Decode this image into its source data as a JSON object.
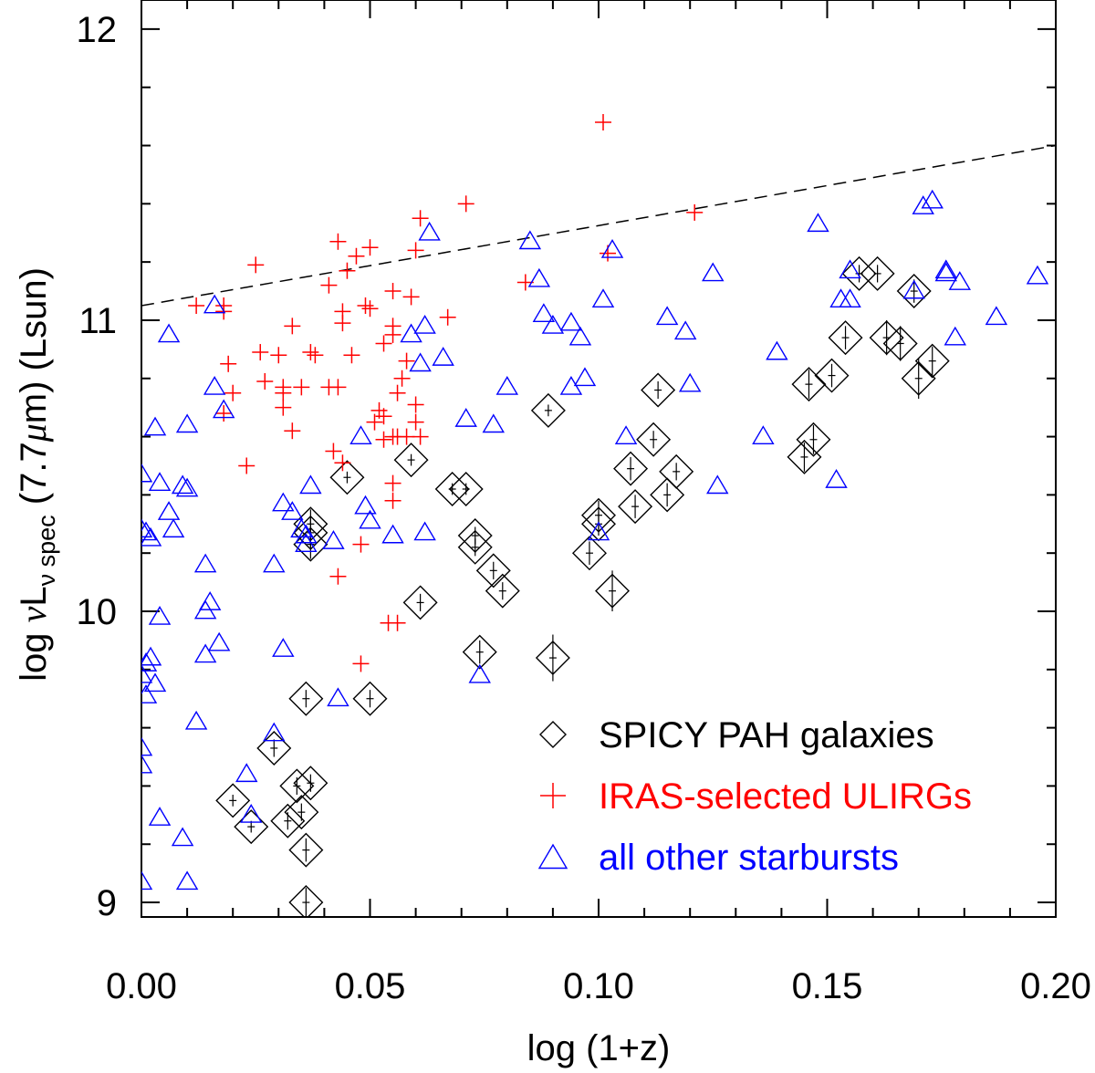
{
  "chart_data": {
    "type": "scatter",
    "xlabel": "log (1+z)",
    "ylabel": {
      "prefix": "log ",
      "nu": "ν",
      "L": "L",
      "sub": "ν spec",
      "middle": " (7.7",
      "mu": "μ",
      "suffix": "m) (Lsun)"
    },
    "xlim": [
      0.0,
      0.2
    ],
    "ylim": [
      8.95,
      12.1
    ],
    "xticks": [
      {
        "value": 0.0,
        "label": "0.00"
      },
      {
        "value": 0.05,
        "label": "0.05"
      },
      {
        "value": 0.1,
        "label": "0.10"
      },
      {
        "value": 0.15,
        "label": "0.15"
      },
      {
        "value": 0.2,
        "label": "0.20"
      }
    ],
    "yticks": [
      {
        "value": 9,
        "label": "9"
      },
      {
        "value": 10,
        "label": "10"
      },
      {
        "value": 11,
        "label": "11"
      },
      {
        "value": 12,
        "label": "12"
      }
    ],
    "reference_line": {
      "style": "dashed",
      "points": [
        [
          0.0,
          11.05
        ],
        [
          0.2,
          11.6
        ]
      ]
    },
    "legend": {
      "position": "bottom-right",
      "entries": [
        {
          "marker": "diamond",
          "label": "SPICY PAH galaxies",
          "color": "#000000"
        },
        {
          "marker": "plus",
          "label": "IRAS-selected ULIRGs",
          "color": "#ff0000"
        },
        {
          "marker": "triangle",
          "label": "all other starbursts",
          "color": "#0000ff"
        }
      ]
    },
    "series": [
      {
        "name": "SPICY PAH galaxies",
        "marker": "diamond",
        "color": "#000000",
        "points": [
          [
            0.036,
            9.0,
            0.05
          ],
          [
            0.036,
            9.18,
            0.04
          ],
          [
            0.032,
            9.28,
            0.03
          ],
          [
            0.035,
            9.31,
            0.03
          ],
          [
            0.024,
            9.26,
            0.02
          ],
          [
            0.02,
            9.35,
            0.02
          ],
          [
            0.034,
            9.4,
            0.03
          ],
          [
            0.037,
            9.41,
            0.03
          ],
          [
            0.029,
            9.53,
            0.03
          ],
          [
            0.036,
            9.7,
            0.03
          ],
          [
            0.05,
            9.7,
            0.03
          ],
          [
            0.061,
            10.03,
            0.03
          ],
          [
            0.037,
            10.3,
            0.05
          ],
          [
            0.037,
            10.27,
            0.05
          ],
          [
            0.037,
            10.23,
            0.05
          ],
          [
            0.045,
            10.46,
            0.02
          ],
          [
            0.059,
            10.52,
            0.02
          ],
          [
            0.068,
            10.42,
            0.02
          ],
          [
            0.071,
            10.42,
            0.02
          ],
          [
            0.073,
            10.26,
            0.03
          ],
          [
            0.073,
            10.22,
            0.03
          ],
          [
            0.077,
            10.14,
            0.03
          ],
          [
            0.079,
            10.07,
            0.03
          ],
          [
            0.074,
            9.86,
            0.04
          ],
          [
            0.09,
            9.84,
            0.08
          ],
          [
            0.089,
            10.69,
            0.02
          ],
          [
            0.098,
            10.2,
            0.04
          ],
          [
            0.1,
            10.3,
            0.04
          ],
          [
            0.1,
            10.33,
            0.05
          ],
          [
            0.103,
            10.07,
            0.07
          ],
          [
            0.107,
            10.49,
            0.04
          ],
          [
            0.108,
            10.36,
            0.04
          ],
          [
            0.112,
            10.59,
            0.03
          ],
          [
            0.113,
            10.76,
            0.03
          ],
          [
            0.115,
            10.4,
            0.04
          ],
          [
            0.117,
            10.48,
            0.03
          ],
          [
            0.145,
            10.53,
            0.05
          ],
          [
            0.147,
            10.59,
            0.05
          ],
          [
            0.146,
            10.78,
            0.05
          ],
          [
            0.151,
            10.81,
            0.04
          ],
          [
            0.154,
            10.94,
            0.04
          ],
          [
            0.157,
            11.16,
            0.03
          ],
          [
            0.161,
            11.16,
            0.03
          ],
          [
            0.163,
            10.94,
            0.06
          ],
          [
            0.166,
            10.92,
            0.06
          ],
          [
            0.169,
            11.1,
            0.04
          ],
          [
            0.17,
            10.8,
            0.07
          ],
          [
            0.173,
            10.86,
            0.05
          ]
        ]
      },
      {
        "name": "IRAS-selected ULIRGs",
        "marker": "plus",
        "color": "#ff0000",
        "points": [
          [
            0.101,
            11.68
          ],
          [
            0.102,
            11.23
          ],
          [
            0.071,
            11.4
          ],
          [
            0.061,
            11.35
          ],
          [
            0.121,
            11.37
          ],
          [
            0.025,
            11.19
          ],
          [
            0.018,
            11.05
          ],
          [
            0.012,
            11.05
          ],
          [
            0.018,
            11.03
          ],
          [
            0.026,
            10.89
          ],
          [
            0.03,
            10.88
          ],
          [
            0.038,
            10.88
          ],
          [
            0.037,
            10.89
          ],
          [
            0.033,
            10.98
          ],
          [
            0.043,
            11.27
          ],
          [
            0.047,
            11.22
          ],
          [
            0.05,
            11.25
          ],
          [
            0.045,
            11.17
          ],
          [
            0.044,
            11.03
          ],
          [
            0.044,
            10.99
          ],
          [
            0.049,
            11.05
          ],
          [
            0.05,
            11.04
          ],
          [
            0.041,
            11.12
          ],
          [
            0.06,
            11.24
          ],
          [
            0.055,
            11.1
          ],
          [
            0.059,
            11.08
          ],
          [
            0.067,
            11.01
          ],
          [
            0.084,
            11.13
          ],
          [
            0.019,
            10.85
          ],
          [
            0.02,
            10.75
          ],
          [
            0.018,
            10.68
          ],
          [
            0.027,
            10.79
          ],
          [
            0.031,
            10.77
          ],
          [
            0.031,
            10.75
          ],
          [
            0.031,
            10.7
          ],
          [
            0.035,
            10.77
          ],
          [
            0.041,
            10.77
          ],
          [
            0.043,
            10.77
          ],
          [
            0.042,
            10.55
          ],
          [
            0.044,
            10.51
          ],
          [
            0.046,
            10.88
          ],
          [
            0.033,
            10.62
          ],
          [
            0.023,
            10.5
          ],
          [
            0.048,
            10.23
          ],
          [
            0.043,
            10.12
          ],
          [
            0.053,
            10.59
          ],
          [
            0.051,
            10.65
          ],
          [
            0.055,
            10.6
          ],
          [
            0.056,
            10.6
          ],
          [
            0.058,
            10.6
          ],
          [
            0.052,
            10.69
          ],
          [
            0.053,
            10.67
          ],
          [
            0.056,
            10.75
          ],
          [
            0.055,
            10.44
          ],
          [
            0.055,
            10.38
          ],
          [
            0.06,
            10.65
          ],
          [
            0.06,
            10.71
          ],
          [
            0.053,
            10.92
          ],
          [
            0.055,
            10.95
          ],
          [
            0.058,
            10.86
          ],
          [
            0.055,
            10.98
          ],
          [
            0.048,
            9.82
          ],
          [
            0.054,
            9.96
          ],
          [
            0.056,
            9.96
          ],
          [
            0.061,
            10.6
          ],
          [
            0.057,
            10.8
          ]
        ]
      },
      {
        "name": "all other starbursts",
        "marker": "triangle",
        "color": "#0000ff",
        "points": [
          [
            0.0,
            9.07
          ],
          [
            0.0,
            9.53
          ],
          [
            0.0,
            9.47
          ],
          [
            0.001,
            9.71
          ],
          [
            0.0,
            9.78
          ],
          [
            0.001,
            9.82
          ],
          [
            0.002,
            9.84
          ],
          [
            0.003,
            9.75
          ],
          [
            0.004,
            9.98
          ],
          [
            0.0,
            10.28
          ],
          [
            0.0,
            10.47
          ],
          [
            0.001,
            10.27
          ],
          [
            0.002,
            10.25
          ],
          [
            0.003,
            10.63
          ],
          [
            0.004,
            10.44
          ],
          [
            0.006,
            10.95
          ],
          [
            0.006,
            10.34
          ],
          [
            0.007,
            10.28
          ],
          [
            0.009,
            10.43
          ],
          [
            0.01,
            10.42
          ],
          [
            0.01,
            10.64
          ],
          [
            0.009,
            9.22
          ],
          [
            0.01,
            9.07
          ],
          [
            0.004,
            9.29
          ],
          [
            0.012,
            9.62
          ],
          [
            0.014,
            9.85
          ],
          [
            0.014,
            10.16
          ],
          [
            0.015,
            10.03
          ],
          [
            0.014,
            10.0
          ],
          [
            0.016,
            10.77
          ],
          [
            0.016,
            11.05
          ],
          [
            0.018,
            10.69
          ],
          [
            0.017,
            9.89
          ],
          [
            0.023,
            9.44
          ],
          [
            0.024,
            9.3
          ],
          [
            0.029,
            10.16
          ],
          [
            0.029,
            9.58
          ],
          [
            0.031,
            9.87
          ],
          [
            0.031,
            10.37
          ],
          [
            0.033,
            10.34
          ],
          [
            0.035,
            10.28
          ],
          [
            0.036,
            10.26
          ],
          [
            0.036,
            10.23
          ],
          [
            0.037,
            10.43
          ],
          [
            0.042,
            10.24
          ],
          [
            0.043,
            9.7
          ],
          [
            0.048,
            10.6
          ],
          [
            0.049,
            10.36
          ],
          [
            0.05,
            10.31
          ],
          [
            0.055,
            10.26
          ],
          [
            0.059,
            10.95
          ],
          [
            0.061,
            10.85
          ],
          [
            0.062,
            10.98
          ],
          [
            0.062,
            10.27
          ],
          [
            0.063,
            11.3
          ],
          [
            0.066,
            10.87
          ],
          [
            0.071,
            10.66
          ],
          [
            0.074,
            9.78
          ],
          [
            0.077,
            10.64
          ],
          [
            0.08,
            10.77
          ],
          [
            0.085,
            11.27
          ],
          [
            0.087,
            11.14
          ],
          [
            0.088,
            11.02
          ],
          [
            0.09,
            10.98
          ],
          [
            0.094,
            10.99
          ],
          [
            0.096,
            10.94
          ],
          [
            0.094,
            10.77
          ],
          [
            0.097,
            10.8
          ],
          [
            0.1,
            10.27
          ],
          [
            0.101,
            11.07
          ],
          [
            0.103,
            11.24
          ],
          [
            0.106,
            10.6
          ],
          [
            0.115,
            11.01
          ],
          [
            0.12,
            10.78
          ],
          [
            0.119,
            10.96
          ],
          [
            0.125,
            11.16
          ],
          [
            0.126,
            10.43
          ],
          [
            0.136,
            10.6
          ],
          [
            0.139,
            10.89
          ],
          [
            0.148,
            11.33
          ],
          [
            0.152,
            10.45
          ],
          [
            0.153,
            11.07
          ],
          [
            0.155,
            11.07
          ],
          [
            0.155,
            11.17
          ],
          [
            0.169,
            11.1
          ],
          [
            0.171,
            11.39
          ],
          [
            0.173,
            11.41
          ],
          [
            0.176,
            11.17
          ],
          [
            0.176,
            11.16
          ],
          [
            0.179,
            11.13
          ],
          [
            0.178,
            10.94
          ],
          [
            0.187,
            11.01
          ],
          [
            0.196,
            11.15
          ]
        ]
      }
    ]
  }
}
